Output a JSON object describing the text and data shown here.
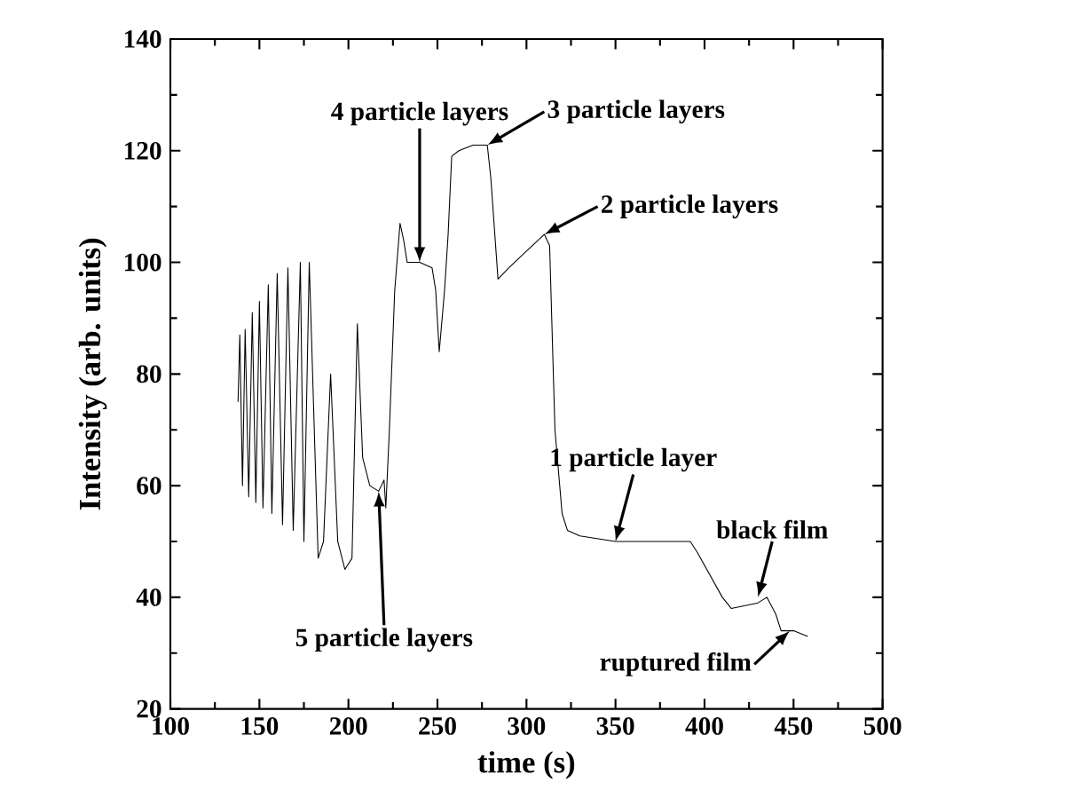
{
  "chart_data": {
    "type": "line",
    "xlabel": "time (s)",
    "ylabel": "Intensity (arb. units)",
    "xlim": [
      100,
      500
    ],
    "ylim": [
      20,
      140
    ],
    "xticks": [
      100,
      150,
      200,
      250,
      300,
      350,
      400,
      450,
      500
    ],
    "yticks": [
      20,
      40,
      60,
      80,
      100,
      120,
      140
    ],
    "color": "#000000",
    "marker": "none",
    "grid": false,
    "x": [
      138,
      139,
      140.5,
      142,
      144,
      146,
      148,
      150,
      152,
      155,
      157,
      160,
      163,
      166,
      169,
      173,
      175,
      178,
      183,
      186,
      190,
      194,
      198,
      202,
      205,
      208,
      212,
      217,
      220,
      221,
      223,
      226,
      229,
      231,
      233,
      240,
      247,
      249,
      251,
      254,
      256,
      258,
      262,
      270,
      278,
      280,
      284,
      290,
      300,
      310,
      313,
      316,
      320,
      323,
      330,
      350,
      370,
      392,
      396,
      410,
      415,
      430,
      435,
      440,
      443,
      450,
      458
    ],
    "values": [
      75,
      87,
      60,
      88,
      58,
      91,
      57,
      93,
      56,
      96,
      55,
      98,
      53,
      99,
      52,
      100,
      50,
      100,
      47,
      50,
      80,
      50,
      45,
      47,
      89,
      65,
      60,
      59,
      61,
      56,
      70,
      95,
      107,
      104,
      100,
      100,
      99,
      95,
      84,
      95,
      105,
      119,
      120,
      121,
      121,
      115,
      97,
      99,
      102,
      105,
      103,
      70,
      55,
      52,
      51,
      50,
      50,
      50,
      48,
      40,
      38,
      39,
      40,
      37,
      34,
      34,
      33
    ],
    "annotations": [
      {
        "text": "4 particle layers",
        "x": 240,
        "y": 100
      },
      {
        "text": "3 particle layers",
        "x": 278,
        "y": 121
      },
      {
        "text": "2 particle layers",
        "x": 310,
        "y": 105
      },
      {
        "text": "1 particle layer",
        "x": 350,
        "y": 50
      },
      {
        "text": "black film",
        "x": 430,
        "y": 40
      },
      {
        "text": "ruptured film",
        "x": 448,
        "y": 34
      },
      {
        "text": "5 particle layers",
        "x": 217,
        "y": 59
      }
    ]
  }
}
